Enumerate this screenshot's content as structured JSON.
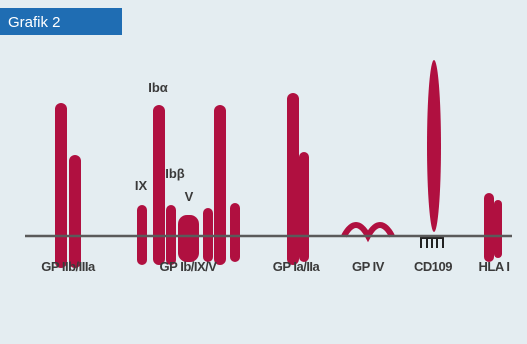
{
  "header": {
    "title": "Grafik 2"
  },
  "annotations": {
    "ib_alpha": "Ibα",
    "ix": "IX",
    "ib_beta": "Ibβ",
    "v": "V"
  },
  "labels": [
    "GP IIb/IIIa",
    "GP Ib/IX/V",
    "GP Ia/IIa",
    "GP IV",
    "CD109",
    "HLA I"
  ]
}
